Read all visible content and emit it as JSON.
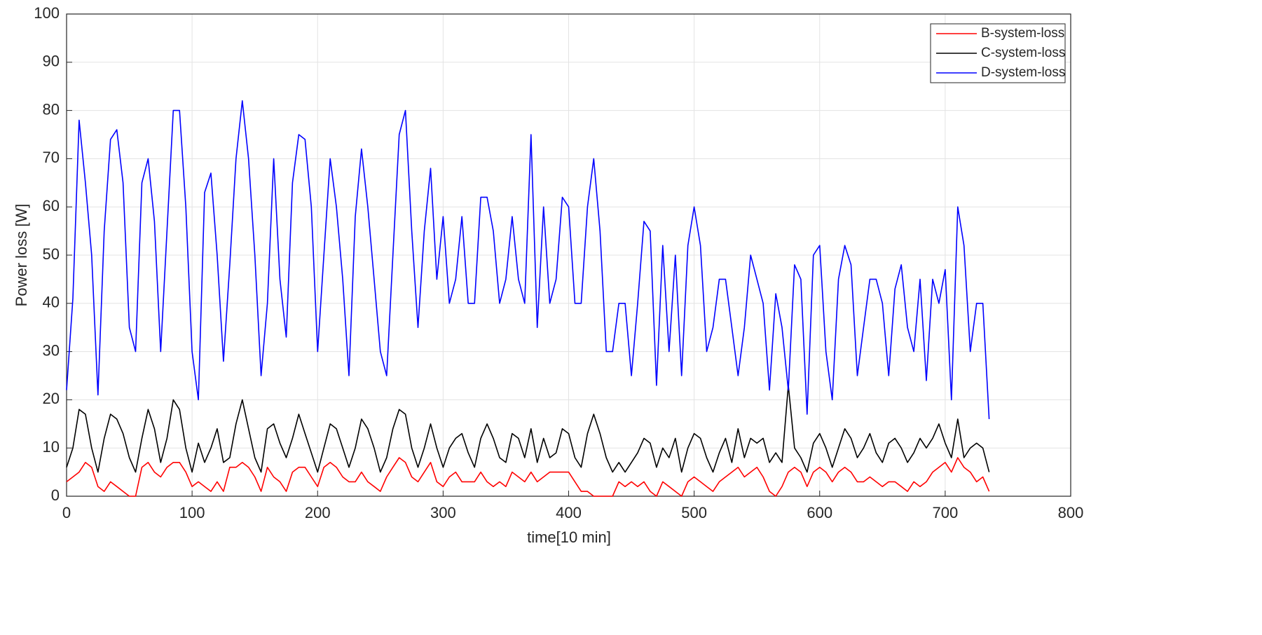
{
  "chart_data": {
    "type": "line",
    "xlabel": "time[10 min]",
    "ylabel": "Power loss [W]",
    "x": [
      0,
      5,
      10,
      15,
      20,
      25,
      30,
      35,
      40,
      45,
      50,
      55,
      60,
      65,
      70,
      75,
      80,
      85,
      90,
      95,
      100,
      105,
      110,
      115,
      120,
      125,
      130,
      135,
      140,
      145,
      150,
      155,
      160,
      165,
      170,
      175,
      180,
      185,
      190,
      195,
      200,
      205,
      210,
      215,
      220,
      225,
      230,
      235,
      240,
      245,
      250,
      255,
      260,
      265,
      270,
      275,
      280,
      285,
      290,
      295,
      300,
      305,
      310,
      315,
      320,
      325,
      330,
      335,
      340,
      345,
      350,
      355,
      360,
      365,
      370,
      375,
      380,
      385,
      390,
      395,
      400,
      405,
      410,
      415,
      420,
      425,
      430,
      435,
      440,
      445,
      450,
      455,
      460,
      465,
      470,
      475,
      480,
      485,
      490,
      495,
      500,
      505,
      510,
      515,
      520,
      525,
      530,
      535,
      540,
      545,
      550,
      555,
      560,
      565,
      570,
      575,
      580,
      585,
      590,
      595,
      600,
      605,
      610,
      615,
      620,
      625,
      630,
      635,
      640,
      645,
      650,
      655,
      660,
      665,
      670,
      675,
      680,
      685,
      690,
      695,
      700,
      705,
      710,
      715,
      720,
      725,
      730,
      735
    ],
    "series": [
      {
        "name": "B-system-loss",
        "color": "#ff0000",
        "values": [
          3,
          4,
          5,
          7,
          6,
          2,
          1,
          3,
          2,
          1,
          0,
          0,
          6,
          7,
          5,
          4,
          6,
          7,
          7,
          5,
          2,
          3,
          2,
          1,
          3,
          1,
          6,
          6,
          7,
          6,
          4,
          1,
          6,
          4,
          3,
          1,
          5,
          6,
          6,
          4,
          2,
          6,
          7,
          6,
          4,
          3,
          3,
          5,
          3,
          2,
          1,
          4,
          6,
          8,
          7,
          4,
          3,
          5,
          7,
          3,
          2,
          4,
          5,
          3,
          3,
          3,
          5,
          3,
          2,
          3,
          2,
          5,
          4,
          3,
          5,
          3,
          4,
          5,
          5,
          5,
          5,
          3,
          1,
          1,
          0,
          0,
          0,
          0,
          3,
          2,
          3,
          2,
          3,
          1,
          0,
          3,
          2,
          1,
          0,
          3,
          4,
          3,
          2,
          1,
          3,
          4,
          5,
          6,
          4,
          5,
          6,
          4,
          1,
          0,
          2,
          5,
          6,
          5,
          2,
          5,
          6,
          5,
          3,
          5,
          6,
          5,
          3,
          3,
          4,
          3,
          2,
          3,
          3,
          2,
          1,
          3,
          2,
          3,
          5,
          6,
          7,
          5,
          8,
          6,
          5,
          3,
          4,
          1
        ]
      },
      {
        "name": "C-system-loss",
        "color": "#000000",
        "values": [
          6,
          10,
          18,
          17,
          10,
          5,
          12,
          17,
          16,
          13,
          8,
          5,
          12,
          18,
          14,
          7,
          12,
          20,
          18,
          10,
          5,
          11,
          7,
          10,
          14,
          7,
          8,
          15,
          20,
          14,
          8,
          5,
          14,
          15,
          11,
          8,
          12,
          17,
          13,
          9,
          5,
          10,
          15,
          14,
          10,
          6,
          10,
          16,
          14,
          10,
          5,
          8,
          14,
          18,
          17,
          10,
          6,
          10,
          15,
          10,
          6,
          10,
          12,
          13,
          9,
          6,
          12,
          15,
          12,
          8,
          7,
          13,
          12,
          8,
          14,
          7,
          12,
          8,
          9,
          14,
          13,
          8,
          6,
          13,
          17,
          13,
          8,
          5,
          7,
          5,
          7,
          9,
          12,
          11,
          6,
          10,
          8,
          12,
          5,
          10,
          13,
          12,
          8,
          5,
          9,
          12,
          7,
          14,
          8,
          12,
          11,
          12,
          7,
          9,
          7,
          23,
          10,
          8,
          5,
          11,
          13,
          10,
          6,
          10,
          14,
          12,
          8,
          10,
          13,
          9,
          7,
          11,
          12,
          10,
          7,
          9,
          12,
          10,
          12,
          15,
          11,
          8,
          16,
          8,
          10,
          11,
          10,
          5
        ]
      },
      {
        "name": "D-system-loss",
        "color": "#0000ff",
        "values": [
          22,
          41,
          78,
          65,
          50,
          21,
          55,
          74,
          76,
          65,
          35,
          30,
          65,
          70,
          57,
          30,
          55,
          80,
          80,
          60,
          30,
          20,
          63,
          67,
          50,
          28,
          48,
          70,
          82,
          70,
          50,
          25,
          40,
          70,
          45,
          33,
          65,
          75,
          74,
          60,
          30,
          50,
          70,
          60,
          45,
          25,
          58,
          72,
          60,
          45,
          30,
          25,
          50,
          75,
          80,
          55,
          35,
          55,
          68,
          45,
          58,
          40,
          45,
          58,
          40,
          40,
          62,
          62,
          55,
          40,
          45,
          58,
          45,
          40,
          75,
          35,
          60,
          40,
          45,
          62,
          60,
          40,
          40,
          60,
          70,
          55,
          30,
          30,
          40,
          40,
          25,
          40,
          57,
          55,
          23,
          52,
          30,
          50,
          25,
          52,
          60,
          52,
          30,
          35,
          45,
          45,
          35,
          25,
          35,
          50,
          45,
          40,
          22,
          42,
          35,
          22,
          48,
          45,
          17,
          50,
          52,
          30,
          20,
          45,
          52,
          48,
          25,
          35,
          45,
          45,
          40,
          25,
          43,
          48,
          35,
          30,
          45,
          24,
          45,
          40,
          47,
          20,
          60,
          52,
          30,
          40,
          40,
          16
        ]
      }
    ],
    "xlim": [
      0,
      800
    ],
    "xticks": [
      0,
      100,
      200,
      300,
      400,
      500,
      600,
      700,
      800
    ],
    "ylim": [
      0,
      100
    ],
    "yticks": [
      0,
      10,
      20,
      30,
      40,
      50,
      60,
      70,
      80,
      90,
      100
    ],
    "grid": true,
    "legend": "upper right"
  }
}
